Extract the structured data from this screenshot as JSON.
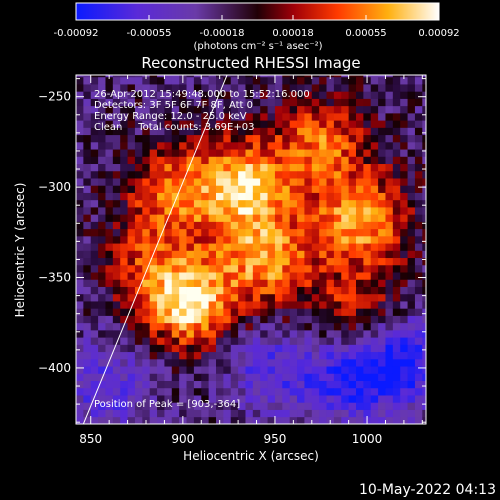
{
  "chart_data": {
    "type": "heatmap",
    "title": "Reconstructed RHESSI Image",
    "xlabel": "Heliocentric X (arcsec)",
    "ylabel": "Heliocentric Y (arcsec)",
    "xlim": [
      842,
      1032
    ],
    "ylim": [
      -431,
      -238
    ],
    "xticks": [
      850,
      900,
      950,
      1000
    ],
    "yticks": [
      -250,
      -300,
      -350,
      -400
    ],
    "colorbar": {
      "label": "(photons cm⁻² s⁻¹ asec⁻²)",
      "range": [
        -0.00092,
        0.00092
      ],
      "tick_labels": [
        "-0.00092",
        "-0.00055",
        "-0.00018",
        "0.00018",
        "0.00055",
        "0.00092"
      ]
    },
    "annotations": {
      "time_range": "26-Apr-2012 15:49:48.000 to 15:52:16.000",
      "detectors": "Detectors: 3F 5F 6F 7F 8F, Att 0",
      "energy_range": "Energy Range: 12.0 - 25.0 keV",
      "method": "Clean     Total counts: 3.69E+03",
      "peak": "Position of Peak = [903,-364]"
    },
    "limb_line": [
      [
        846,
        -431
      ],
      [
        924,
        -238
      ]
    ],
    "peak_position": [
      903,
      -364
    ],
    "emission_sources": [
      {
        "x": 903,
        "y": -364,
        "value": 0.00092
      },
      {
        "x": 932,
        "y": -300,
        "value": 0.0008
      },
      {
        "x": 997,
        "y": -318,
        "value": 0.0007
      },
      {
        "x": 893,
        "y": -302,
        "value": 0.00055
      },
      {
        "x": 975,
        "y": -275,
        "value": 0.00055
      },
      {
        "x": 945,
        "y": -340,
        "value": 0.0006
      },
      {
        "x": 995,
        "y": -370,
        "value": 0.0004
      },
      {
        "x": 880,
        "y": -342,
        "value": 0.0004
      }
    ],
    "negative_sources": [
      {
        "x": 1020,
        "y": -395,
        "value": -0.0007
      },
      {
        "x": 948,
        "y": -400,
        "value": -0.0005
      },
      {
        "x": 990,
        "y": -405,
        "value": -0.0006
      },
      {
        "x": 858,
        "y": -410,
        "value": -0.0004
      }
    ],
    "grid": false
  },
  "footer": {
    "date": "10-May-2022 04:13"
  }
}
